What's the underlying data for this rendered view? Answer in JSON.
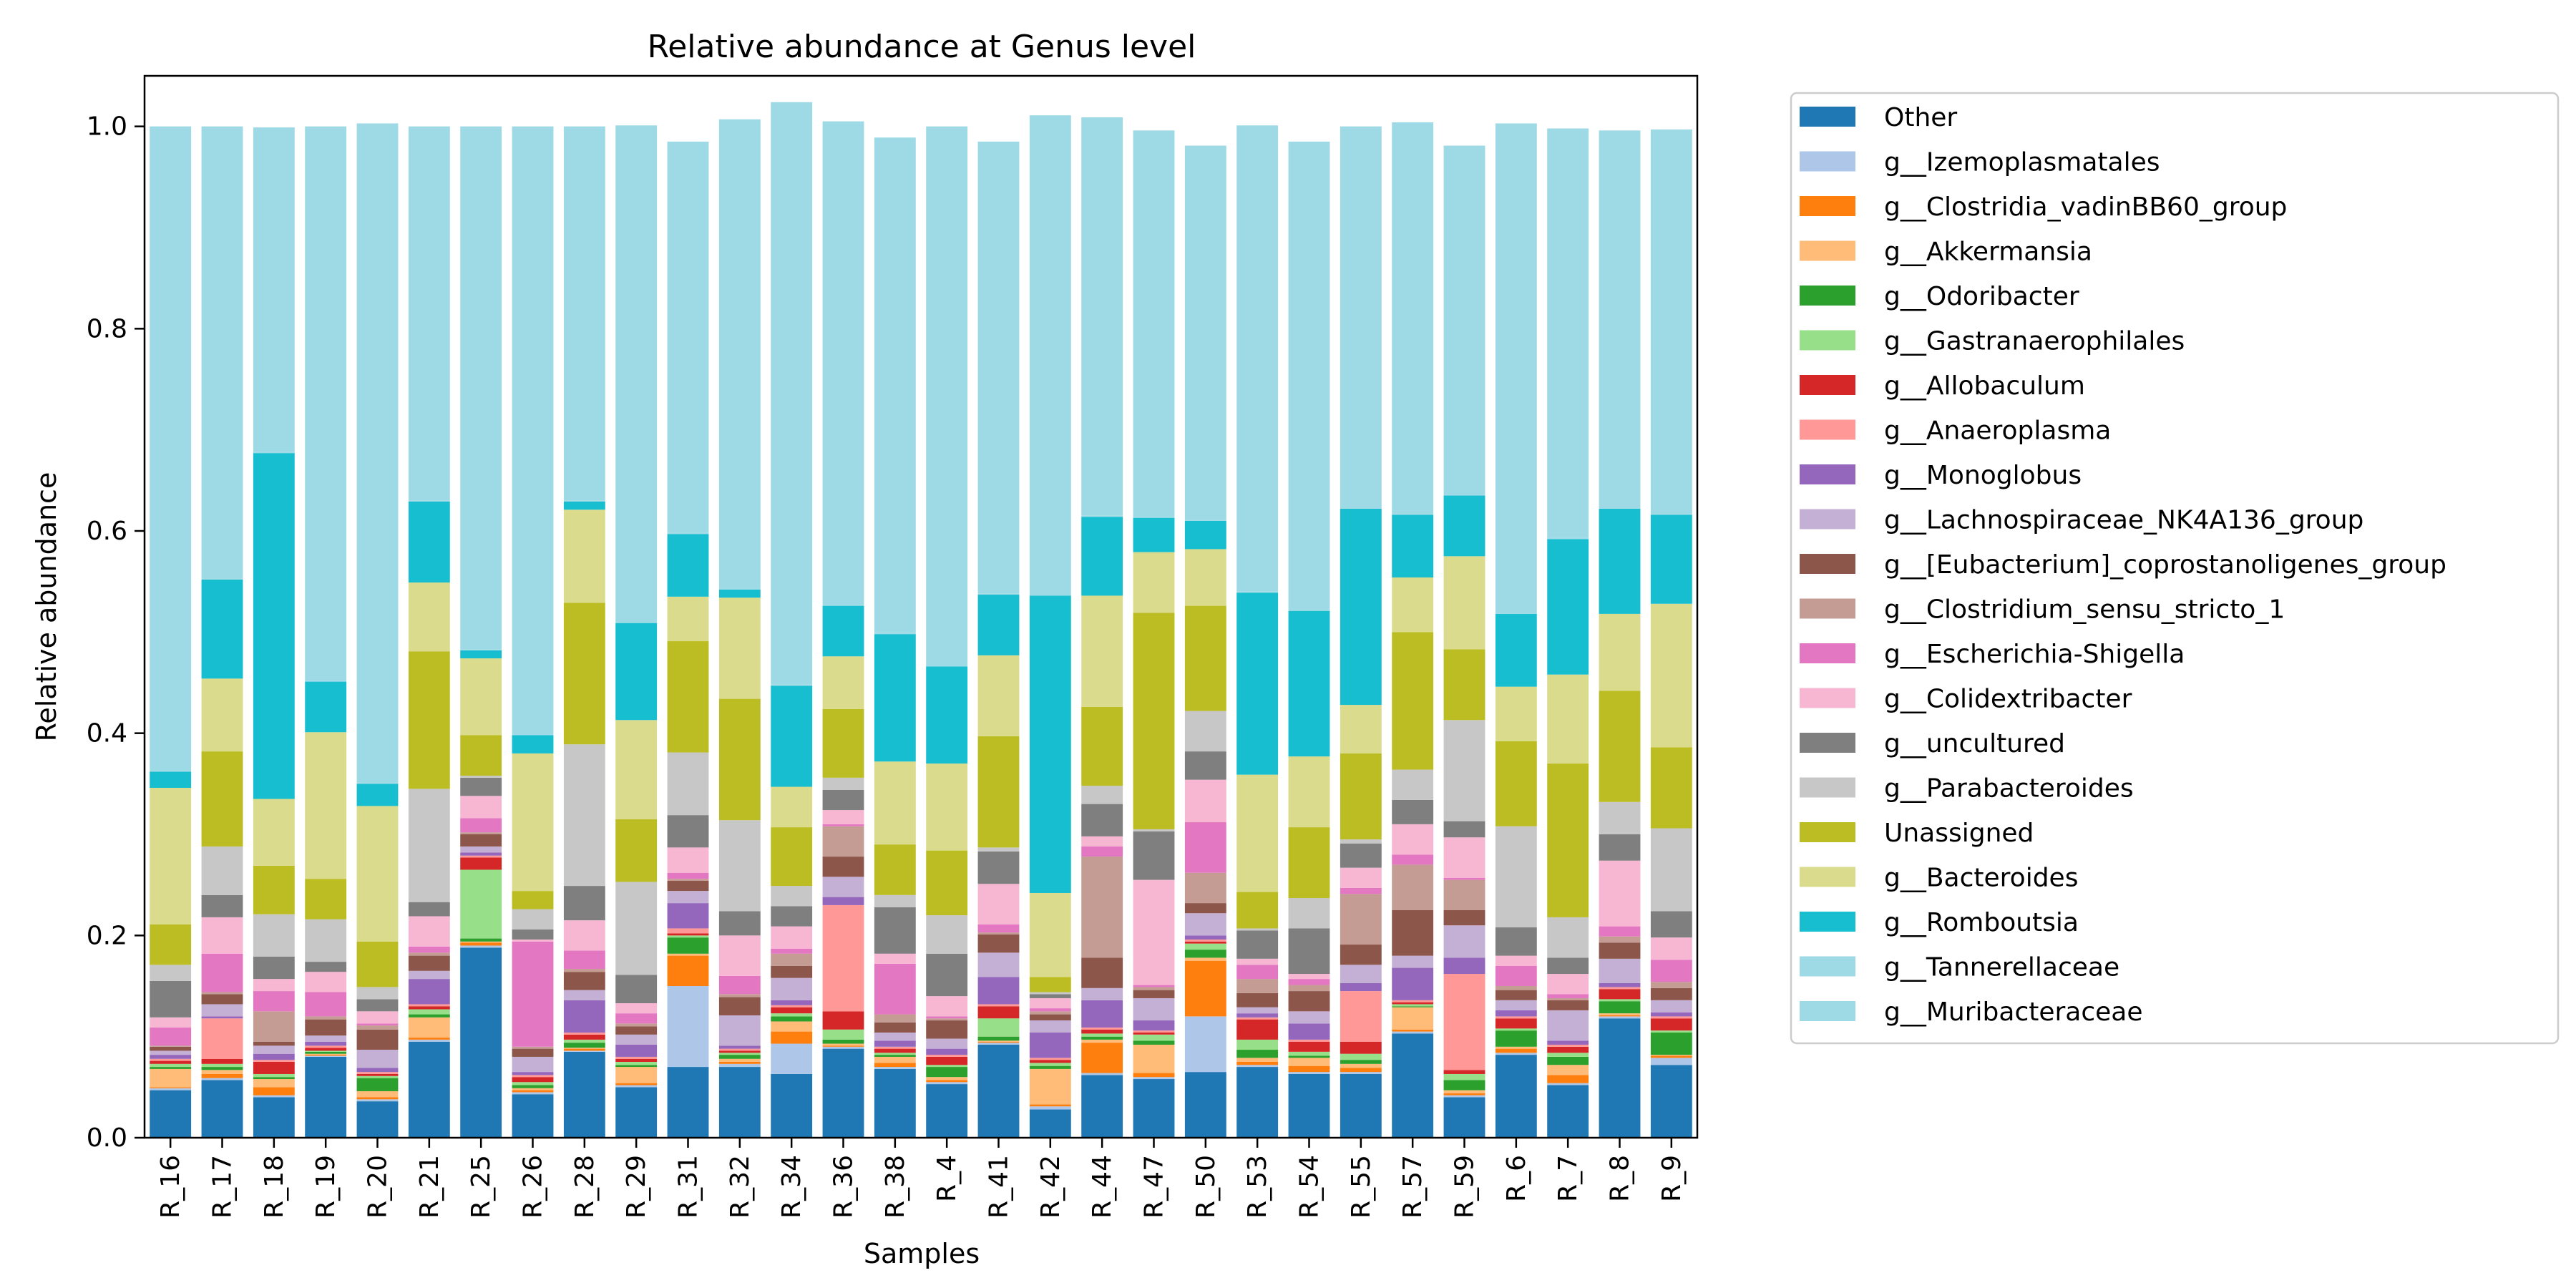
{
  "chart_data": {
    "type": "bar",
    "stacked": true,
    "title": "Relative abundance at Genus level",
    "xlabel": "Samples",
    "ylabel": "Relative abundance",
    "ylim": [
      0,
      1.05
    ],
    "yticks": [
      "0.0",
      "0.2",
      "0.4",
      "0.6",
      "0.8",
      "1.0"
    ],
    "legend_position": "outside-right",
    "categories": [
      "R_16",
      "R_17",
      "R_18",
      "R_19",
      "R_20",
      "R_21",
      "R_25",
      "R_26",
      "R_28",
      "R_29",
      "R_31",
      "R_32",
      "R_34",
      "R_36",
      "R_38",
      "R_4",
      "R_41",
      "R_42",
      "R_44",
      "R_47",
      "R_50",
      "R_53",
      "R_54",
      "R_55",
      "R_57",
      "R_59",
      "R_6",
      "R_7",
      "R_8",
      "R_9"
    ],
    "series": [
      {
        "name": "Other",
        "color": "#1f77b4",
        "values": [
          0.047,
          0.057,
          0.04,
          0.08,
          0.036,
          0.095,
          0.188,
          0.043,
          0.085,
          0.05,
          0.07,
          0.07,
          0.063,
          0.088,
          0.068,
          0.053,
          0.092,
          0.028,
          0.062,
          0.058,
          0.065,
          0.07,
          0.063,
          0.063,
          0.103,
          0.04,
          0.082,
          0.052,
          0.118,
          0.072
        ]
      },
      {
        "name": "g__Izemoplasmatales",
        "color": "#aec7e8",
        "values": [
          0.002,
          0.002,
          0.002,
          0.001,
          0.002,
          0.002,
          0.002,
          0.002,
          0.001,
          0.002,
          0.08,
          0.003,
          0.03,
          0.002,
          0.002,
          0.002,
          0.002,
          0.003,
          0.002,
          0.002,
          0.055,
          0.002,
          0.002,
          0.002,
          0.002,
          0.002,
          0.002,
          0.002,
          0.002,
          0.007
        ]
      },
      {
        "name": "g__Clostridia_vadinBB60_group",
        "color": "#ff7f0e",
        "values": [
          0.001,
          0.004,
          0.008,
          0.001,
          0.002,
          0.002,
          0.003,
          0.002,
          0.002,
          0.002,
          0.03,
          0.002,
          0.012,
          0.001,
          0.004,
          0.002,
          0.001,
          0.002,
          0.03,
          0.004,
          0.055,
          0.003,
          0.006,
          0.004,
          0.002,
          0.002,
          0.004,
          0.008,
          0.001,
          0.002
        ]
      },
      {
        "name": "g__Akkermansia",
        "color": "#ffbb78",
        "values": [
          0.018,
          0.004,
          0.008,
          0.001,
          0.006,
          0.02,
          0.001,
          0.002,
          0.001,
          0.016,
          0.002,
          0.003,
          0.01,
          0.002,
          0.006,
          0.003,
          0.001,
          0.035,
          0.003,
          0.028,
          0.003,
          0.004,
          0.008,
          0.004,
          0.022,
          0.003,
          0.002,
          0.01,
          0.002,
          0.001
        ]
      },
      {
        "name": "g__Odoribacter",
        "color": "#2ca02c",
        "values": [
          0.002,
          0.003,
          0.002,
          0.002,
          0.013,
          0.003,
          0.003,
          0.003,
          0.005,
          0.002,
          0.016,
          0.004,
          0.005,
          0.004,
          0.002,
          0.01,
          0.004,
          0.003,
          0.003,
          0.004,
          0.008,
          0.008,
          0.002,
          0.004,
          0.001,
          0.01,
          0.016,
          0.008,
          0.012,
          0.022
        ]
      },
      {
        "name": "g__Gastranaerophilales",
        "color": "#98df8a",
        "values": [
          0.003,
          0.003,
          0.003,
          0.001,
          0.002,
          0.005,
          0.068,
          0.003,
          0.003,
          0.003,
          0.002,
          0.002,
          0.003,
          0.01,
          0.002,
          0.002,
          0.018,
          0.003,
          0.003,
          0.006,
          0.006,
          0.01,
          0.004,
          0.006,
          0.002,
          0.006,
          0.002,
          0.004,
          0.002,
          0.002
        ]
      },
      {
        "name": "g__Allobaculum",
        "color": "#d62728",
        "values": [
          0.003,
          0.005,
          0.012,
          0.003,
          0.002,
          0.003,
          0.012,
          0.005,
          0.005,
          0.003,
          0.002,
          0.002,
          0.006,
          0.018,
          0.004,
          0.008,
          0.012,
          0.003,
          0.004,
          0.002,
          0.002,
          0.02,
          0.01,
          0.012,
          0.002,
          0.004,
          0.01,
          0.006,
          0.01,
          0.012
        ]
      },
      {
        "name": "g__Anaeroplasma",
        "color": "#ff9896",
        "values": [
          0.002,
          0.04,
          0.002,
          0.002,
          0.002,
          0.002,
          0.002,
          0.002,
          0.002,
          0.002,
          0.005,
          0.002,
          0.002,
          0.105,
          0.002,
          0.002,
          0.002,
          0.002,
          0.002,
          0.002,
          0.002,
          0.002,
          0.002,
          0.05,
          0.002,
          0.095,
          0.002,
          0.002,
          0.002,
          0.002
        ]
      },
      {
        "name": "g__Monoglobus",
        "color": "#9467bd",
        "values": [
          0.004,
          0.002,
          0.006,
          0.004,
          0.004,
          0.025,
          0.003,
          0.003,
          0.032,
          0.012,
          0.025,
          0.003,
          0.005,
          0.008,
          0.006,
          0.006,
          0.027,
          0.025,
          0.027,
          0.01,
          0.004,
          0.004,
          0.016,
          0.008,
          0.032,
          0.016,
          0.006,
          0.004,
          0.004,
          0.004
        ]
      },
      {
        "name": "g__Lachnospiraceae_NK4A136_group",
        "color": "#c5b0d5",
        "values": [
          0.004,
          0.012,
          0.008,
          0.006,
          0.018,
          0.008,
          0.006,
          0.015,
          0.01,
          0.01,
          0.012,
          0.03,
          0.022,
          0.02,
          0.008,
          0.01,
          0.024,
          0.012,
          0.012,
          0.022,
          0.022,
          0.006,
          0.012,
          0.018,
          0.012,
          0.032,
          0.01,
          0.03,
          0.024,
          0.012
        ]
      },
      {
        "name": "g__[Eubacterium]_coprostanoligenes_group",
        "color": "#8c564b",
        "values": [
          0.004,
          0.01,
          0.004,
          0.016,
          0.02,
          0.015,
          0.012,
          0.008,
          0.018,
          0.008,
          0.01,
          0.018,
          0.012,
          0.02,
          0.01,
          0.018,
          0.018,
          0.006,
          0.03,
          0.008,
          0.01,
          0.014,
          0.02,
          0.02,
          0.045,
          0.015,
          0.01,
          0.01,
          0.016,
          0.012
        ]
      },
      {
        "name": "g__Clostridium_sensu_stricto_1",
        "color": "#c49c94",
        "values": [
          0.001,
          0.002,
          0.03,
          0.003,
          0.004,
          0.003,
          0.002,
          0.002,
          0.003,
          0.003,
          0.002,
          0.003,
          0.012,
          0.03,
          0.008,
          0.002,
          0.002,
          0.003,
          0.1,
          0.003,
          0.03,
          0.014,
          0.006,
          0.05,
          0.045,
          0.03,
          0.004,
          0.002,
          0.006,
          0.006
        ]
      },
      {
        "name": "g__Escherichia-Shigella",
        "color": "#e377c2",
        "values": [
          0.018,
          0.038,
          0.02,
          0.024,
          0.002,
          0.006,
          0.014,
          0.104,
          0.018,
          0.01,
          0.006,
          0.018,
          0.005,
          0.002,
          0.05,
          0.002,
          0.008,
          0.003,
          0.01,
          0.002,
          0.05,
          0.014,
          0.006,
          0.006,
          0.01,
          0.002,
          0.02,
          0.004,
          0.01,
          0.022
        ]
      },
      {
        "name": "g__Colidextribacter",
        "color": "#f7b6d2",
        "values": [
          0.01,
          0.036,
          0.012,
          0.02,
          0.012,
          0.03,
          0.022,
          0.002,
          0.03,
          0.01,
          0.025,
          0.04,
          0.022,
          0.014,
          0.01,
          0.02,
          0.04,
          0.01,
          0.01,
          0.104,
          0.042,
          0.006,
          0.005,
          0.02,
          0.03,
          0.04,
          0.01,
          0.02,
          0.065,
          0.022
        ]
      },
      {
        "name": "g__uncultured",
        "color": "#7f7f7f",
        "values": [
          0.036,
          0.022,
          0.022,
          0.01,
          0.012,
          0.014,
          0.018,
          0.01,
          0.034,
          0.028,
          0.032,
          0.024,
          0.02,
          0.02,
          0.046,
          0.042,
          0.032,
          0.004,
          0.032,
          0.048,
          0.028,
          0.028,
          0.045,
          0.024,
          0.024,
          0.016,
          0.028,
          0.016,
          0.026,
          0.026
        ]
      },
      {
        "name": "g__Parabacteroides",
        "color": "#c7c7c7",
        "values": [
          0.016,
          0.048,
          0.042,
          0.042,
          0.012,
          0.112,
          0.002,
          0.02,
          0.14,
          0.092,
          0.062,
          0.09,
          0.02,
          0.012,
          0.012,
          0.038,
          0.004,
          0.002,
          0.018,
          0.002,
          0.04,
          0.002,
          0.03,
          0.004,
          0.03,
          0.1,
          0.1,
          0.04,
          0.032,
          0.082
        ]
      },
      {
        "name": "Unassigned",
        "color": "#bcbd22",
        "values": [
          0.04,
          0.094,
          0.048,
          0.04,
          0.045,
          0.136,
          0.04,
          0.018,
          0.14,
          0.062,
          0.11,
          0.12,
          0.058,
          0.068,
          0.05,
          0.064,
          0.11,
          0.015,
          0.078,
          0.214,
          0.104,
          0.036,
          0.07,
          0.085,
          0.136,
          0.07,
          0.084,
          0.152,
          0.11,
          0.08
        ]
      },
      {
        "name": "g__Bacteroides",
        "color": "#dbdb8d",
        "values": [
          0.135,
          0.072,
          0.066,
          0.145,
          0.134,
          0.068,
          0.076,
          0.136,
          0.092,
          0.098,
          0.044,
          0.1,
          0.04,
          0.052,
          0.082,
          0.086,
          0.08,
          0.083,
          0.11,
          0.06,
          0.056,
          0.116,
          0.07,
          0.048,
          0.054,
          0.092,
          0.054,
          0.088,
          0.076,
          0.142
        ]
      },
      {
        "name": "g__Romboutsia",
        "color": "#17becf",
        "values": [
          0.016,
          0.098,
          0.342,
          0.05,
          0.022,
          0.08,
          0.008,
          0.018,
          0.008,
          0.096,
          0.062,
          0.008,
          0.1,
          0.05,
          0.126,
          0.096,
          0.06,
          0.294,
          0.078,
          0.034,
          0.028,
          0.18,
          0.144,
          0.194,
          0.062,
          0.06,
          0.072,
          0.134,
          0.104,
          0.088
        ]
      },
      {
        "name": "g__Tannerellaceae",
        "color": "#9edae5",
        "values": [
          0.001,
          0.001,
          0.001,
          0.001,
          0.001,
          0.001,
          0.001,
          0.001,
          0.001,
          0.001,
          0.001,
          0.001,
          0.001,
          0.001,
          0.001,
          0.001,
          0.001,
          0.001,
          0.001,
          0.001,
          0.001,
          0.001,
          0.001,
          0.001,
          0.001,
          0.001,
          0.001,
          0.001,
          0.001,
          0.001
        ]
      },
      {
        "name": "g__Muribacteraceae",
        "color": "#9edae5",
        "values": [
          0.637,
          0.447,
          0.321,
          0.548,
          0.652,
          0.37,
          0.517,
          0.601,
          0.37,
          0.491,
          0.387,
          0.464,
          0.576,
          0.478,
          0.49,
          0.533,
          0.447,
          0.474,
          0.394,
          0.382,
          0.37,
          0.461,
          0.463,
          0.377,
          0.387,
          0.345,
          0.484,
          0.405,
          0.373,
          0.38
        ]
      }
    ]
  }
}
